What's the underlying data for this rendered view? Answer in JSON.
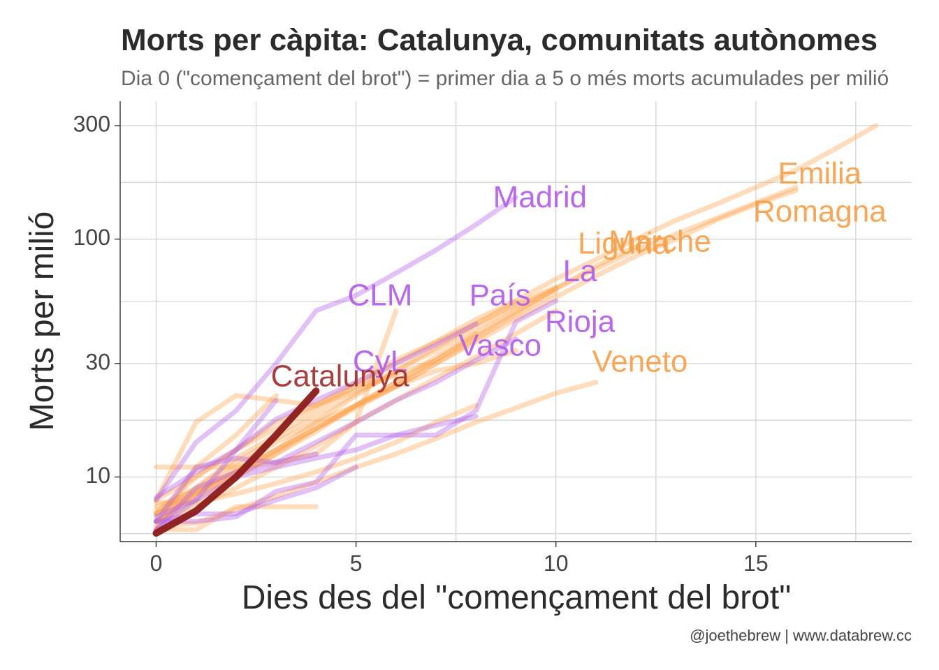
{
  "colors": {
    "spain": "#b15ce8",
    "italy": "#ffa34d",
    "catalonia": "#8b1a1a",
    "label_italy": "#f5a04a",
    "label_spain": "#b15ce8",
    "label_catalonia": "#9c2b2b"
  },
  "chart_data": {
    "type": "line",
    "title": "Morts per càpita: Catalunya, comunitats autònomes",
    "subtitle": "Dia 0 (\"començament del brot\") = primer dia a 5 o més morts acumulades per milió",
    "caption": "@joethebrew | www.databrew.cc",
    "xlabel": "Dies des del \"començament del brot\"",
    "ylabel": "Morts per milió",
    "y_scale": "log",
    "xlim": [
      -0.9,
      18.9
    ],
    "ylim": [
      5.35,
      380
    ],
    "x_ticks": [
      {
        "value": 0,
        "label": "0"
      },
      {
        "value": 5,
        "label": "5"
      },
      {
        "value": 10,
        "label": "10"
      },
      {
        "value": 15,
        "label": "15"
      }
    ],
    "y_ticks": [
      {
        "value": 10,
        "label": "10"
      },
      {
        "value": 30,
        "label": "30"
      },
      {
        "value": 100,
        "label": "100"
      },
      {
        "value": 300,
        "label": "300"
      }
    ],
    "grid": true,
    "series": [
      {
        "group": "italy",
        "x": [
          0,
          1,
          2,
          3,
          4,
          5,
          6,
          7,
          8,
          9,
          10,
          11,
          12,
          13,
          14,
          15,
          16,
          17,
          18
        ],
        "y": [
          7.5,
          8.8,
          10.5,
          13,
          17,
          22,
          28,
          35,
          44,
          55,
          68,
          82,
          100,
          120,
          140,
          165,
          195,
          240,
          300
        ]
      },
      {
        "group": "italy",
        "x": [
          0,
          1,
          2,
          3,
          4,
          5,
          6,
          7,
          8,
          9,
          10,
          11,
          12,
          13,
          14,
          15,
          16
        ],
        "y": [
          7,
          8.5,
          10,
          12.5,
          16,
          20,
          25,
          32,
          40,
          50,
          62,
          75,
          90,
          105,
          122,
          142,
          165
        ]
      },
      {
        "group": "italy",
        "x": [
          0,
          1,
          2,
          3,
          4,
          5,
          6,
          7,
          8,
          9,
          10,
          11,
          12
        ],
        "y": [
          6.5,
          8,
          10,
          12.5,
          15.5,
          20,
          25,
          31,
          39,
          49,
          62,
          77,
          93
        ]
      },
      {
        "group": "italy",
        "x": [
          0,
          1,
          2,
          3,
          4,
          5,
          6,
          7,
          8,
          9,
          10
        ],
        "y": [
          7,
          8.5,
          10.5,
          13,
          16,
          19.5,
          24,
          30,
          38,
          48,
          60
        ]
      },
      {
        "group": "italy",
        "x": [
          0,
          1,
          2,
          3,
          4,
          5,
          6,
          7,
          8,
          9,
          10,
          11
        ],
        "y": [
          6.2,
          6.4,
          7.3,
          8.3,
          9.5,
          11,
          12.5,
          14.5,
          17,
          19.5,
          22.5,
          25
        ]
      },
      {
        "group": "italy",
        "x": [
          0,
          1,
          2,
          3,
          4,
          5,
          6,
          7,
          8
        ],
        "y": [
          7.8,
          7.8,
          8.5,
          9.4,
          10.5,
          12,
          14,
          17,
          20
        ]
      },
      {
        "group": "italy",
        "x": [
          0,
          1,
          2,
          3,
          4,
          5,
          6,
          7,
          8,
          9,
          10
        ],
        "y": [
          7.2,
          9,
          11.5,
          14.5,
          18,
          22.5,
          28,
          34,
          42,
          52,
          62
        ]
      },
      {
        "group": "italy",
        "x": [
          0,
          1,
          2,
          3,
          4,
          5,
          6,
          7,
          8,
          9,
          10
        ],
        "y": [
          6.5,
          7.5,
          9,
          11,
          13.5,
          17,
          21,
          26,
          32,
          40,
          50
        ]
      },
      {
        "group": "italy",
        "x": [
          0,
          1,
          2,
          3,
          4,
          5,
          6,
          7,
          8,
          9
        ],
        "y": [
          6.5,
          8.5,
          11,
          14,
          17,
          20,
          24,
          28,
          30,
          34
        ]
      },
      {
        "group": "italy",
        "x": [
          0,
          1,
          2,
          3,
          4,
          5,
          6,
          7,
          8
        ],
        "y": [
          8,
          17,
          22,
          21,
          20,
          24,
          27,
          31,
          40
        ]
      },
      {
        "group": "italy",
        "x": [
          0,
          1,
          2,
          3,
          4,
          5,
          6
        ],
        "y": [
          11,
          11,
          11,
          11.5,
          12.5,
          17,
          50
        ]
      },
      {
        "group": "italy",
        "x": [
          0,
          1,
          2,
          3
        ],
        "y": [
          6,
          11,
          15,
          22
        ]
      },
      {
        "group": "italy",
        "x": [
          0,
          1,
          2,
          3,
          4,
          5,
          6
        ],
        "y": [
          7,
          10,
          13,
          17,
          20,
          23,
          27
        ]
      },
      {
        "group": "italy",
        "x": [
          0,
          1,
          2,
          3,
          4
        ],
        "y": [
          6,
          6,
          7.5,
          7.5,
          7.5
        ]
      },
      {
        "group": "italy",
        "x": [
          0,
          1,
          2,
          3,
          4,
          5,
          6,
          7,
          8,
          9
        ],
        "y": [
          7,
          9,
          12,
          15,
          19,
          24,
          30,
          37,
          46,
          55
        ]
      },
      {
        "group": "italy",
        "x": [
          0,
          1,
          2,
          3,
          4,
          5,
          6,
          7,
          8,
          9,
          10
        ],
        "y": [
          8,
          10,
          13,
          16,
          20,
          25,
          31,
          37,
          44,
          53,
          63
        ]
      },
      {
        "group": "italy",
        "x": [
          0,
          1,
          2,
          3,
          4,
          5,
          6,
          7,
          8,
          9,
          10,
          11,
          12,
          13,
          14,
          15,
          16
        ],
        "y": [
          6.5,
          8.5,
          10.5,
          13,
          16,
          20,
          24,
          30,
          37,
          46,
          57,
          70,
          85,
          100,
          120,
          140,
          160
        ]
      },
      {
        "group": "spain",
        "x": [
          0,
          1,
          2,
          3,
          4,
          5,
          6,
          7,
          8,
          9
        ],
        "y": [
          8,
          14,
          19,
          30,
          50,
          58,
          72,
          90,
          115,
          150
        ]
      },
      {
        "group": "spain",
        "x": [
          0,
          1,
          2,
          3,
          4,
          5,
          6,
          7,
          8,
          9,
          10
        ],
        "y": [
          6.5,
          6.5,
          6.8,
          8.7,
          9.5,
          15,
          15,
          15,
          19,
          45,
          55
        ]
      },
      {
        "group": "spain",
        "x": [
          0,
          1,
          2,
          3,
          4,
          5,
          6,
          7,
          8,
          9
        ],
        "y": [
          6.5,
          11,
          12,
          11.5,
          14,
          17,
          21,
          25,
          31,
          38
        ]
      },
      {
        "group": "spain",
        "x": [
          0,
          1,
          2,
          3,
          4,
          5,
          6,
          7,
          8
        ],
        "y": [
          8.2,
          10.5,
          13,
          17.5,
          21,
          25,
          30,
          36,
          44
        ]
      },
      {
        "group": "spain",
        "x": [
          0,
          1,
          2,
          3,
          4,
          5,
          6,
          7,
          8
        ],
        "y": [
          6,
          8,
          10,
          11,
          12,
          13,
          15,
          16.5,
          18
        ]
      },
      {
        "group": "spain",
        "x": [
          0,
          1,
          2,
          3
        ],
        "y": [
          6.8,
          8,
          13,
          21
        ]
      },
      {
        "group": "spain",
        "x": [
          0,
          1,
          2,
          3,
          4
        ],
        "y": [
          6,
          9,
          10.5,
          11.5,
          12.5
        ]
      },
      {
        "group": "spain",
        "x": [
          0,
          1,
          2,
          3,
          4,
          5
        ],
        "y": [
          6.5,
          7,
          7,
          8,
          9,
          11
        ]
      },
      {
        "group": "catalonia",
        "x": [
          0,
          1,
          2,
          3,
          4
        ],
        "y": [
          5.8,
          7.2,
          10,
          15,
          23
        ]
      }
    ],
    "labels": [
      {
        "text": "Emilia",
        "group": "italy",
        "x": 16.6,
        "y": 185
      },
      {
        "text": "Romagna",
        "group": "italy",
        "x": 16.6,
        "y": 128
      },
      {
        "text": "Liguria",
        "group": "italy",
        "x": 11.7,
        "y": 94
      },
      {
        "text": "Marche",
        "group": "italy",
        "x": 12.6,
        "y": 96
      },
      {
        "text": "Veneto",
        "group": "italy",
        "x": 12.1,
        "y": 30
      },
      {
        "text": "Madrid",
        "group": "spain",
        "x": 9.6,
        "y": 147
      },
      {
        "text": "La",
        "group": "spain",
        "x": 10.6,
        "y": 72
      },
      {
        "text": "Rioja",
        "group": "spain",
        "x": 10.6,
        "y": 44
      },
      {
        "text": "País",
        "group": "spain",
        "x": 8.6,
        "y": 57
      },
      {
        "text": "Vasco",
        "group": "spain",
        "x": 8.6,
        "y": 35
      },
      {
        "text": "CLM",
        "group": "spain",
        "x": 5.6,
        "y": 57
      },
      {
        "text": "CyL",
        "group": "spain",
        "x": 5.6,
        "y": 30
      },
      {
        "text": "Catalunya",
        "group": "catalonia",
        "x": 4.6,
        "y": 26
      }
    ]
  }
}
